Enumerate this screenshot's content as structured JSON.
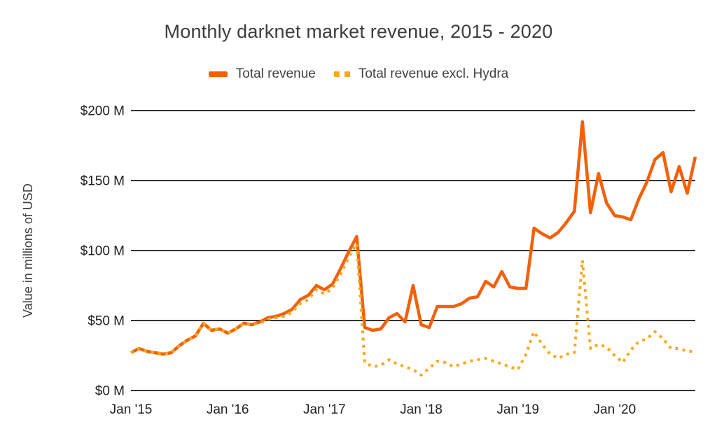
{
  "title": "Monthly darknet market revenue, 2015 - 2020",
  "legend": {
    "items": [
      {
        "label": "Total revenue",
        "style": "solid",
        "color": "#F26109"
      },
      {
        "label": "Total revenue excl. Hydra",
        "style": "dotted",
        "color": "#FAA819"
      }
    ]
  },
  "y_axis": {
    "label": "Value in millions of USD",
    "ticks": [
      {
        "label": "$0 M",
        "value": 0
      },
      {
        "label": "$50 M",
        "value": 50
      },
      {
        "label": "$100 M",
        "value": 100
      },
      {
        "label": "$150 M",
        "value": 150
      },
      {
        "label": "$200 M",
        "value": 200
      }
    ]
  },
  "x_axis": {
    "ticks": [
      {
        "label": "Jan '15",
        "month_index": 0
      },
      {
        "label": "Jan '16",
        "month_index": 12
      },
      {
        "label": "Jan '17",
        "month_index": 24
      },
      {
        "label": "Jan '18",
        "month_index": 36
      },
      {
        "label": "Jan '19",
        "month_index": 48
      },
      {
        "label": "Jan '20",
        "month_index": 60
      }
    ]
  },
  "chart_data": {
    "type": "line",
    "title": "Monthly darknet market revenue, 2015 - 2020",
    "xlabel": "",
    "ylabel": "Value in millions of USD",
    "ylim": [
      0,
      200
    ],
    "unit": "millions of USD per month",
    "x_start": "Jan 2015",
    "x_end": "Nov 2020",
    "x_frequency": "monthly",
    "grid": "horizontal",
    "gridline_color": "#333333",
    "legend_position": "top",
    "series": [
      {
        "name": "Total revenue",
        "style": "solid",
        "color": "#F26109",
        "values": [
          27,
          30,
          28,
          27,
          26,
          27,
          32,
          36,
          39,
          48,
          43,
          44,
          41,
          44,
          48,
          47,
          49,
          52,
          53,
          55,
          58,
          65,
          68,
          75,
          72,
          76,
          87,
          99,
          110,
          45,
          43,
          44,
          52,
          55,
          49,
          75,
          47,
          45,
          60,
          60,
          60,
          62,
          66,
          67,
          78,
          74,
          85,
          74,
          73,
          73,
          116,
          112,
          109,
          113,
          120,
          128,
          192,
          127,
          155,
          134,
          125,
          124,
          122,
          137,
          149,
          165,
          170,
          142,
          160,
          141,
          167
        ]
      },
      {
        "name": "Total revenue excl. Hydra",
        "style": "dotted",
        "color": "#FAA819",
        "values": [
          27,
          30,
          28,
          27,
          26,
          27,
          32,
          36,
          39,
          48,
          43,
          44,
          41,
          44,
          48,
          47,
          48,
          51,
          52,
          53,
          56,
          62,
          65,
          72,
          69,
          73,
          83,
          95,
          105,
          20,
          17,
          18,
          22,
          19,
          17,
          15,
          11,
          16,
          21,
          20,
          17,
          19,
          21,
          22,
          23,
          21,
          19,
          17,
          15,
          26,
          42,
          33,
          26,
          23,
          26,
          27,
          93,
          30,
          33,
          31,
          25,
          20,
          29,
          35,
          37,
          42,
          37,
          30,
          30,
          28,
          28
        ]
      }
    ]
  }
}
